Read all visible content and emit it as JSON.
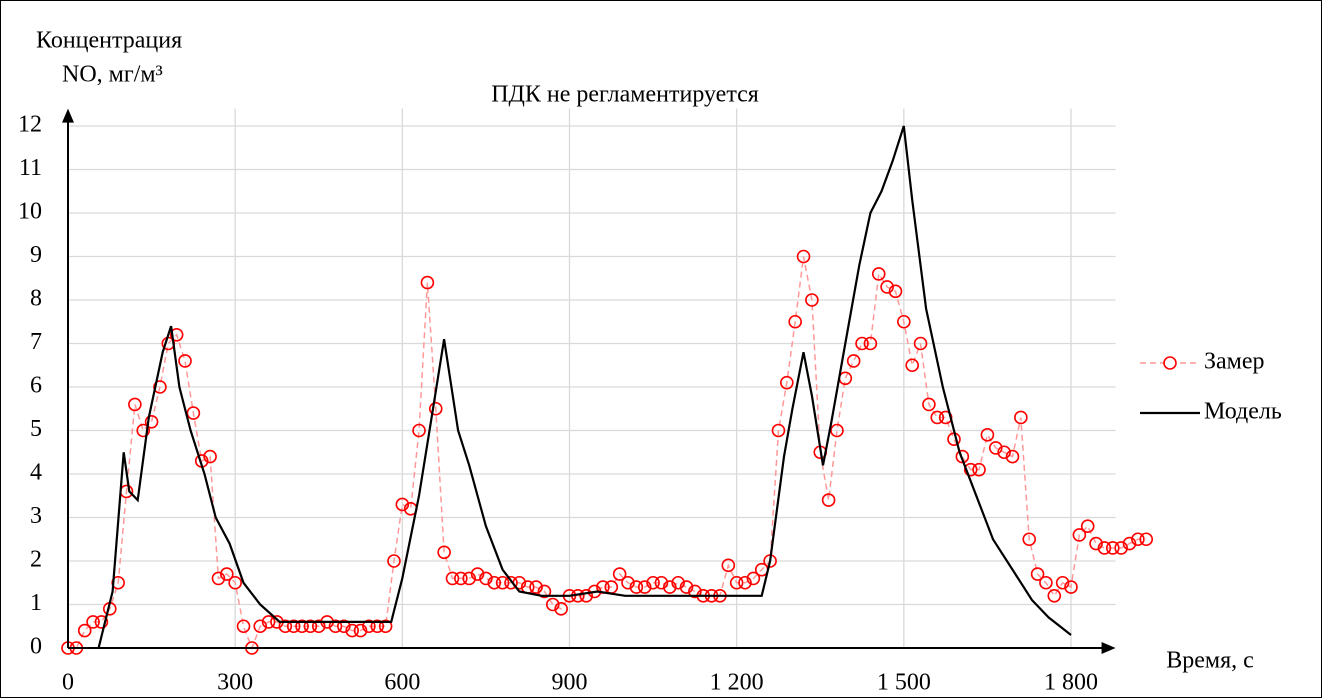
{
  "chart_data": {
    "type": "line",
    "title": "ПДК не регламентируется",
    "y_label": [
      "Концентрация",
      "NO, мг/м³"
    ],
    "x_label": "Время, с",
    "xlim": [
      0,
      1880
    ],
    "ylim": [
      0,
      12.4
    ],
    "xticks": [
      0,
      300,
      600,
      900,
      {
        "value": 1200,
        "label": "1 200"
      },
      {
        "value": 1500,
        "label": "1 500"
      },
      {
        "value": 1800,
        "label": "1 800"
      }
    ],
    "yticks": [
      0,
      1,
      2,
      3,
      4,
      5,
      6,
      7,
      8,
      9,
      10,
      11,
      12
    ],
    "grid": true,
    "legend": "right",
    "series": [
      {
        "name": "Замер",
        "color": "#ff0000",
        "marker": "circle",
        "line": "dashed",
        "x": [
          0,
          15,
          30,
          45,
          60,
          75,
          90,
          105,
          120,
          135,
          150,
          165,
          180,
          195,
          210,
          225,
          240,
          255,
          270,
          285,
          300,
          315,
          330,
          345,
          360,
          375,
          390,
          405,
          420,
          435,
          450,
          465,
          480,
          495,
          510,
          525,
          540,
          555,
          570,
          585,
          600,
          615,
          630,
          645,
          660,
          675,
          690,
          705,
          720,
          735,
          750,
          765,
          780,
          795,
          810,
          825,
          840,
          855,
          870,
          885,
          900,
          915,
          930,
          945,
          960,
          975,
          990,
          1005,
          1020,
          1035,
          1050,
          1065,
          1080,
          1095,
          1110,
          1125,
          1140,
          1155,
          1170,
          1185,
          1200,
          1215,
          1230,
          1245,
          1260,
          1275,
          1290,
          1305,
          1320,
          1335,
          1350,
          1365,
          1380,
          1395,
          1410,
          1425,
          1440,
          1455,
          1470,
          1485,
          1500,
          1515,
          1530,
          1545,
          1560,
          1575,
          1590,
          1605,
          1620,
          1635,
          1650,
          1665,
          1680,
          1695,
          1710,
          1725,
          1740,
          1755,
          1770,
          1785,
          1800,
          1815,
          1830,
          1845,
          1860,
          1875,
          1890,
          1905,
          1920,
          1935
        ],
        "values": [
          0,
          0,
          0.4,
          0.6,
          0.6,
          0.9,
          1.5,
          3.6,
          5.6,
          5.0,
          5.2,
          6.0,
          7.0,
          7.2,
          6.6,
          5.4,
          4.3,
          4.4,
          1.6,
          1.7,
          1.5,
          0.5,
          0,
          0.5,
          0.6,
          0.6,
          0.5,
          0.5,
          0.5,
          0.5,
          0.5,
          0.6,
          0.5,
          0.5,
          0.4,
          0.4,
          0.5,
          0.5,
          0.5,
          2.0,
          3.3,
          3.2,
          5.0,
          8.4,
          5.5,
          2.2,
          1.6,
          1.6,
          1.6,
          1.7,
          1.6,
          1.5,
          1.5,
          1.5,
          1.5,
          1.4,
          1.4,
          1.3,
          1.0,
          0.9,
          1.2,
          1.2,
          1.2,
          1.3,
          1.4,
          1.4,
          1.7,
          1.5,
          1.4,
          1.4,
          1.5,
          1.5,
          1.4,
          1.5,
          1.4,
          1.3,
          1.2,
          1.2,
          1.2,
          1.9,
          1.5,
          1.5,
          1.6,
          1.8,
          2.0,
          5.0,
          6.1,
          7.5,
          9.0,
          8.0,
          4.5,
          3.4,
          5.0,
          6.2,
          6.6,
          7.0,
          7.0,
          8.6,
          8.3,
          8.2,
          7.5,
          6.5,
          7.0,
          5.6,
          5.3,
          5.3,
          4.8,
          4.4,
          4.1,
          4.1,
          4.9,
          4.6,
          4.5,
          4.4,
          5.3,
          2.5,
          1.7,
          1.5,
          1.2,
          1.5,
          1.4,
          2.6,
          2.8,
          2.4,
          2.3,
          2.3,
          2.3,
          2.4,
          2.5,
          2.5
        ]
      },
      {
        "name": "Модель",
        "color": "#000000",
        "line": "solid",
        "x": [
          55,
          80,
          100,
          110,
          125,
          145,
          170,
          185,
          200,
          220,
          245,
          265,
          290,
          315,
          345,
          380,
          450,
          500,
          580,
          600,
          630,
          655,
          675,
          700,
          720,
          750,
          780,
          810,
          850,
          900,
          950,
          1000,
          1100,
          1200,
          1245,
          1260,
          1285,
          1300,
          1320,
          1335,
          1355,
          1370,
          1395,
          1420,
          1440,
          1460,
          1480,
          1500,
          1515,
          1540,
          1570,
          1600,
          1630,
          1660,
          1700,
          1730,
          1760,
          1780,
          1800
        ],
        "values": [
          0,
          1.3,
          4.5,
          3.6,
          3.4,
          5.3,
          6.8,
          7.4,
          6.0,
          5.0,
          4.0,
          3.0,
          2.4,
          1.5,
          1.0,
          0.6,
          0.6,
          0.6,
          0.6,
          1.6,
          3.5,
          5.5,
          7.1,
          5.0,
          4.2,
          2.8,
          1.8,
          1.3,
          1.2,
          1.2,
          1.3,
          1.2,
          1.2,
          1.2,
          1.2,
          2.0,
          4.4,
          5.5,
          6.8,
          5.8,
          4.2,
          5.2,
          7.0,
          8.8,
          10.0,
          10.5,
          11.2,
          12.0,
          10.3,
          7.8,
          6.0,
          4.5,
          3.5,
          2.5,
          1.7,
          1.1,
          0.7,
          0.5,
          0.3
        ]
      }
    ]
  }
}
